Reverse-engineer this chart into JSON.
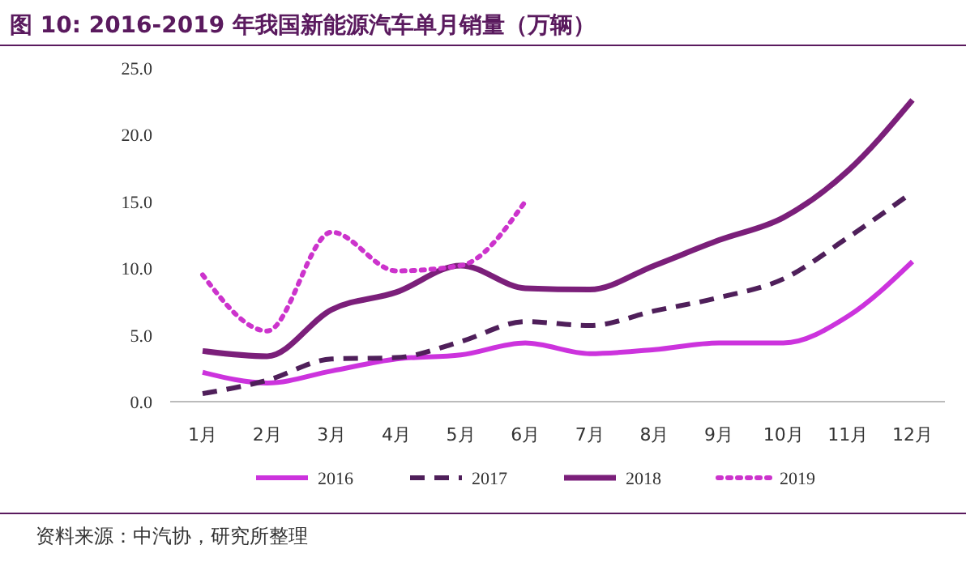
{
  "chart_data": {
    "type": "line",
    "title": "图 10:   2016-2019 年我国新能源汽车单月销量（万辆）",
    "categories": [
      "1月",
      "2月",
      "3月",
      "4月",
      "5月",
      "6月",
      "7月",
      "8月",
      "9月",
      "10月",
      "11月",
      "12月"
    ],
    "series": [
      {
        "name": "2016",
        "color": "#cc33dd",
        "line_style": "solid",
        "values": [
          2.2,
          1.4,
          2.3,
          3.2,
          3.5,
          4.4,
          3.6,
          3.9,
          4.4,
          4.4,
          6.4,
          10.5
        ]
      },
      {
        "name": "2017",
        "color": "#4f1f5a",
        "line_style": "dashed",
        "values": [
          0.6,
          1.6,
          3.2,
          3.3,
          4.5,
          6.0,
          5.7,
          6.8,
          7.8,
          9.2,
          12.3,
          15.7
        ]
      },
      {
        "name": "2018",
        "color": "#7b1f7a",
        "line_style": "solid",
        "values": [
          3.8,
          3.4,
          6.9,
          8.2,
          10.2,
          8.5,
          8.4,
          10.2,
          12.1,
          13.8,
          17.3,
          22.6
        ]
      },
      {
        "name": "2019",
        "color": "#cc33cc",
        "line_style": "dotted",
        "values": [
          9.5,
          5.3,
          12.7,
          9.8,
          10.2,
          15.0,
          null,
          null,
          null,
          null,
          null,
          null
        ]
      }
    ],
    "ylim": [
      0,
      25
    ],
    "yticks": [
      {
        "value": 0,
        "label": "0.0"
      },
      {
        "value": 5,
        "label": "5.0"
      },
      {
        "value": 10,
        "label": "10.0"
      },
      {
        "value": 15,
        "label": "15.0"
      },
      {
        "value": 20,
        "label": "20.0"
      },
      {
        "value": 25,
        "label": "25.0"
      }
    ],
    "legend": "bottom",
    "annotations": [
      "资料来源：中汽协，研究所整理"
    ]
  }
}
